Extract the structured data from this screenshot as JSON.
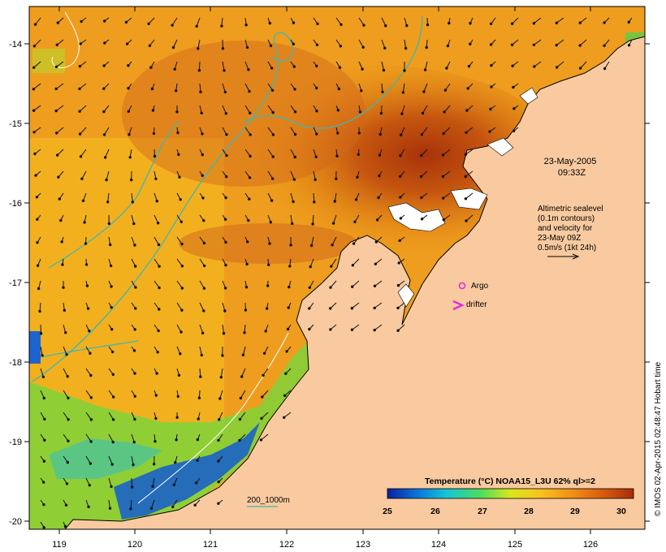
{
  "map": {
    "title": "",
    "lon_ticks": [
      "119",
      "120",
      "121",
      "122",
      "123",
      "124",
      "125",
      "126"
    ],
    "lat_ticks": [
      "-14",
      "-15",
      "-16",
      "-17",
      "-18",
      "-19",
      "-20"
    ],
    "timestamp": {
      "line1": "23-May-2005",
      "line2": "09:33Z"
    },
    "altimetry_note": {
      "line1": "Altimetric sealevel",
      "line2": "(0.1m contours)",
      "line3": "and velocity for",
      "line4": "23-May 09Z",
      "line5": "0.5m/s (1kt 24h)"
    },
    "markers": {
      "argo_label": "Argo",
      "drifter_label": "drifter"
    },
    "depth_legend": "200_1000m",
    "colorbar": {
      "title": "Temperature (°C) NOAA15_L3U 62% ql>=2",
      "ticks": [
        "25",
        "26",
        "27",
        "28",
        "29",
        "30"
      ],
      "colors": [
        "#0b1f9e",
        "#0a74d8",
        "#13c6d6",
        "#4fdc5a",
        "#d9e81c",
        "#f7c31e",
        "#f08b17",
        "#d85a0e",
        "#a62d08"
      ]
    },
    "credit": "© IMOS 02-Apr-2015 02:48:47 Hobart time",
    "colors": {
      "land": "#f9caa0",
      "contour": "#3fb7b0",
      "argo": "#e02be0",
      "drifter": "#e02be0"
    }
  }
}
